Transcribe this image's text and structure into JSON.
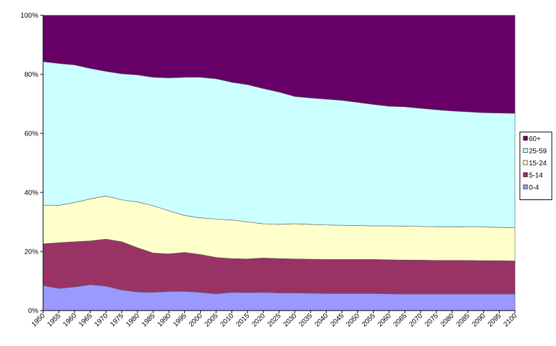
{
  "chart_data": {
    "type": "stacked_area_100",
    "categories": [
      "1950",
      "1955",
      "1960",
      "1965",
      "1970",
      "1975",
      "1980",
      "1985",
      "1990",
      "1995",
      "2000",
      "2005",
      "2010",
      "2015",
      "2020",
      "2025",
      "2030",
      "2035",
      "2040",
      "2045",
      "2050",
      "2055",
      "2060",
      "2065",
      "2070",
      "2075",
      "2080",
      "2085",
      "2090",
      "2095",
      "2100"
    ],
    "series": [
      {
        "name": "0-4",
        "color": "#9999ff",
        "values": [
          8.5,
          7.5,
          8,
          8.8,
          8.3,
          7,
          6.3,
          6.2,
          6.5,
          6.5,
          6.2,
          5.7,
          6.2,
          6.1,
          6.2,
          6.0,
          6.0,
          5.9,
          5.8,
          5.8,
          5.8,
          5.8,
          5.7,
          5.6,
          5.6,
          5.6,
          5.6,
          5.6,
          5.6,
          5.6,
          5.6
        ]
      },
      {
        "name": "5-14",
        "color": "#993366",
        "values": [
          14.1,
          15.5,
          15.3,
          14.8,
          15.9,
          16.3,
          15.0,
          13.3,
          12.7,
          13.2,
          12.8,
          12.3,
          11.4,
          11.4,
          11.6,
          11.6,
          11.5,
          11.5,
          11.5,
          11.5,
          11.5,
          11.5,
          11.5,
          11.5,
          11.5,
          11.4,
          11.4,
          11.4,
          11.3,
          11.3,
          11.2
        ]
      },
      {
        "name": "15-24",
        "color": "#ffffcc",
        "values": [
          13.0,
          12.6,
          13.3,
          14.2,
          14.6,
          14.2,
          15.5,
          16.0,
          14.6,
          12.5,
          12.4,
          13.0,
          13.1,
          12.5,
          11.6,
          11.6,
          11.9,
          11.8,
          11.7,
          11.6,
          11.5,
          11.4,
          11.5,
          11.5,
          11.4,
          11.4,
          11.4,
          11.3,
          11.4,
          11.3,
          11.3
        ]
      },
      {
        "name": "25-59",
        "color": "#ccffff",
        "values": [
          48.7,
          48.1,
          46.6,
          44.2,
          42.2,
          42.7,
          43.0,
          43.5,
          45.0,
          46.8,
          47.6,
          47.5,
          46.6,
          46.5,
          45.8,
          44.8,
          43.1,
          42.8,
          42.6,
          42.3,
          41.7,
          41.1,
          40.5,
          40.4,
          40.0,
          39.6,
          39.2,
          39.0,
          38.7,
          38.7,
          38.7
        ]
      },
      {
        "name": "60+",
        "color": "#660066",
        "values": [
          15.7,
          16.3,
          16.8,
          18.0,
          19.0,
          19.8,
          20.2,
          21.0,
          21.2,
          21.0,
          21.0,
          21.5,
          22.7,
          23.5,
          24.8,
          26.0,
          27.5,
          28.0,
          28.4,
          28.8,
          29.5,
          30.2,
          30.8,
          31.0,
          31.5,
          32.0,
          32.4,
          32.7,
          33.0,
          33.1,
          33.2
        ]
      }
    ],
    "ylim": [
      0,
      100
    ],
    "yticks": [
      {
        "value": 0,
        "label": "0%"
      },
      {
        "value": 20,
        "label": "20%"
      },
      {
        "value": 40,
        "label": "40%"
      },
      {
        "value": 60,
        "label": "60%"
      },
      {
        "value": 80,
        "label": "80%"
      },
      {
        "value": 100,
        "label": "100%"
      }
    ],
    "legend": "right"
  }
}
